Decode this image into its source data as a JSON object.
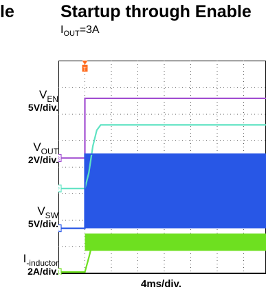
{
  "header": {
    "title_prev_fragment": "le",
    "title": "Startup through Enable",
    "subtitle_main": "I",
    "subtitle_sub": "OUT",
    "subtitle_rest": "=3A"
  },
  "chart_data": {
    "type": "line",
    "title": "Startup through Enable",
    "subtitle": "IOUT=3A",
    "xlabel": "4ms/div.",
    "divisions_x": 10,
    "divisions_y": 8,
    "grid": true,
    "trigger_marker": "T",
    "trigger_time_div": 1.0,
    "series": [
      {
        "name": "VEN",
        "channel": "3",
        "scale": "5V/div.",
        "color": "#a24fd1",
        "points": [
          [
            0,
            4.35
          ],
          [
            1.0,
            4.35
          ],
          [
            1.0,
            6.6
          ],
          [
            10,
            6.6
          ]
        ]
      },
      {
        "name": "VOUT",
        "channel": "2",
        "scale": "2V/div.",
        "color": "#5fe3c3",
        "points": [
          [
            0,
            3.2
          ],
          [
            1.0,
            3.2
          ],
          [
            1.15,
            3.8
          ],
          [
            1.3,
            4.8
          ],
          [
            1.45,
            5.4
          ],
          [
            1.6,
            5.6
          ],
          [
            10,
            5.6
          ]
        ]
      },
      {
        "name": "VSW",
        "channel": "1",
        "scale": "5V/div.",
        "color": "#2857e6",
        "points": [
          [
            0,
            1.7
          ],
          [
            1.0,
            1.7
          ],
          [
            1.0,
            4.5
          ],
          [
            10,
            4.5
          ]
        ],
        "band_after_time_div": 1.0,
        "band_low": 1.7,
        "band_high": 4.5
      },
      {
        "name": "I-inductor",
        "channel": "4",
        "scale": "2A/div.",
        "color": "#6ee020",
        "points": [
          [
            0,
            0.05
          ],
          [
            1.0,
            0.05
          ],
          [
            1.15,
            0.6
          ],
          [
            1.3,
            1.2
          ],
          [
            1.5,
            1.3
          ],
          [
            10,
            1.3
          ]
        ],
        "band_after_time_div": 1.0,
        "band_low": 0.85,
        "band_high": 1.5
      }
    ]
  },
  "labels": {
    "ven": {
      "main": "V",
      "sub": "EN",
      "scale": "5V/div."
    },
    "vout": {
      "main": "V",
      "sub": "OUT",
      "scale": "2V/div."
    },
    "vsw": {
      "main": "V",
      "sub": "SW",
      "scale": "5V/div."
    },
    "iind": {
      "main": "I",
      "sub": "-inductor",
      "scale": "2A/div."
    }
  },
  "colors": {
    "ven": "#a24fd1",
    "vout": "#5fe3c3",
    "vsw": "#2857e6",
    "iind": "#6ee020",
    "trigger": "#ff6a1c"
  }
}
